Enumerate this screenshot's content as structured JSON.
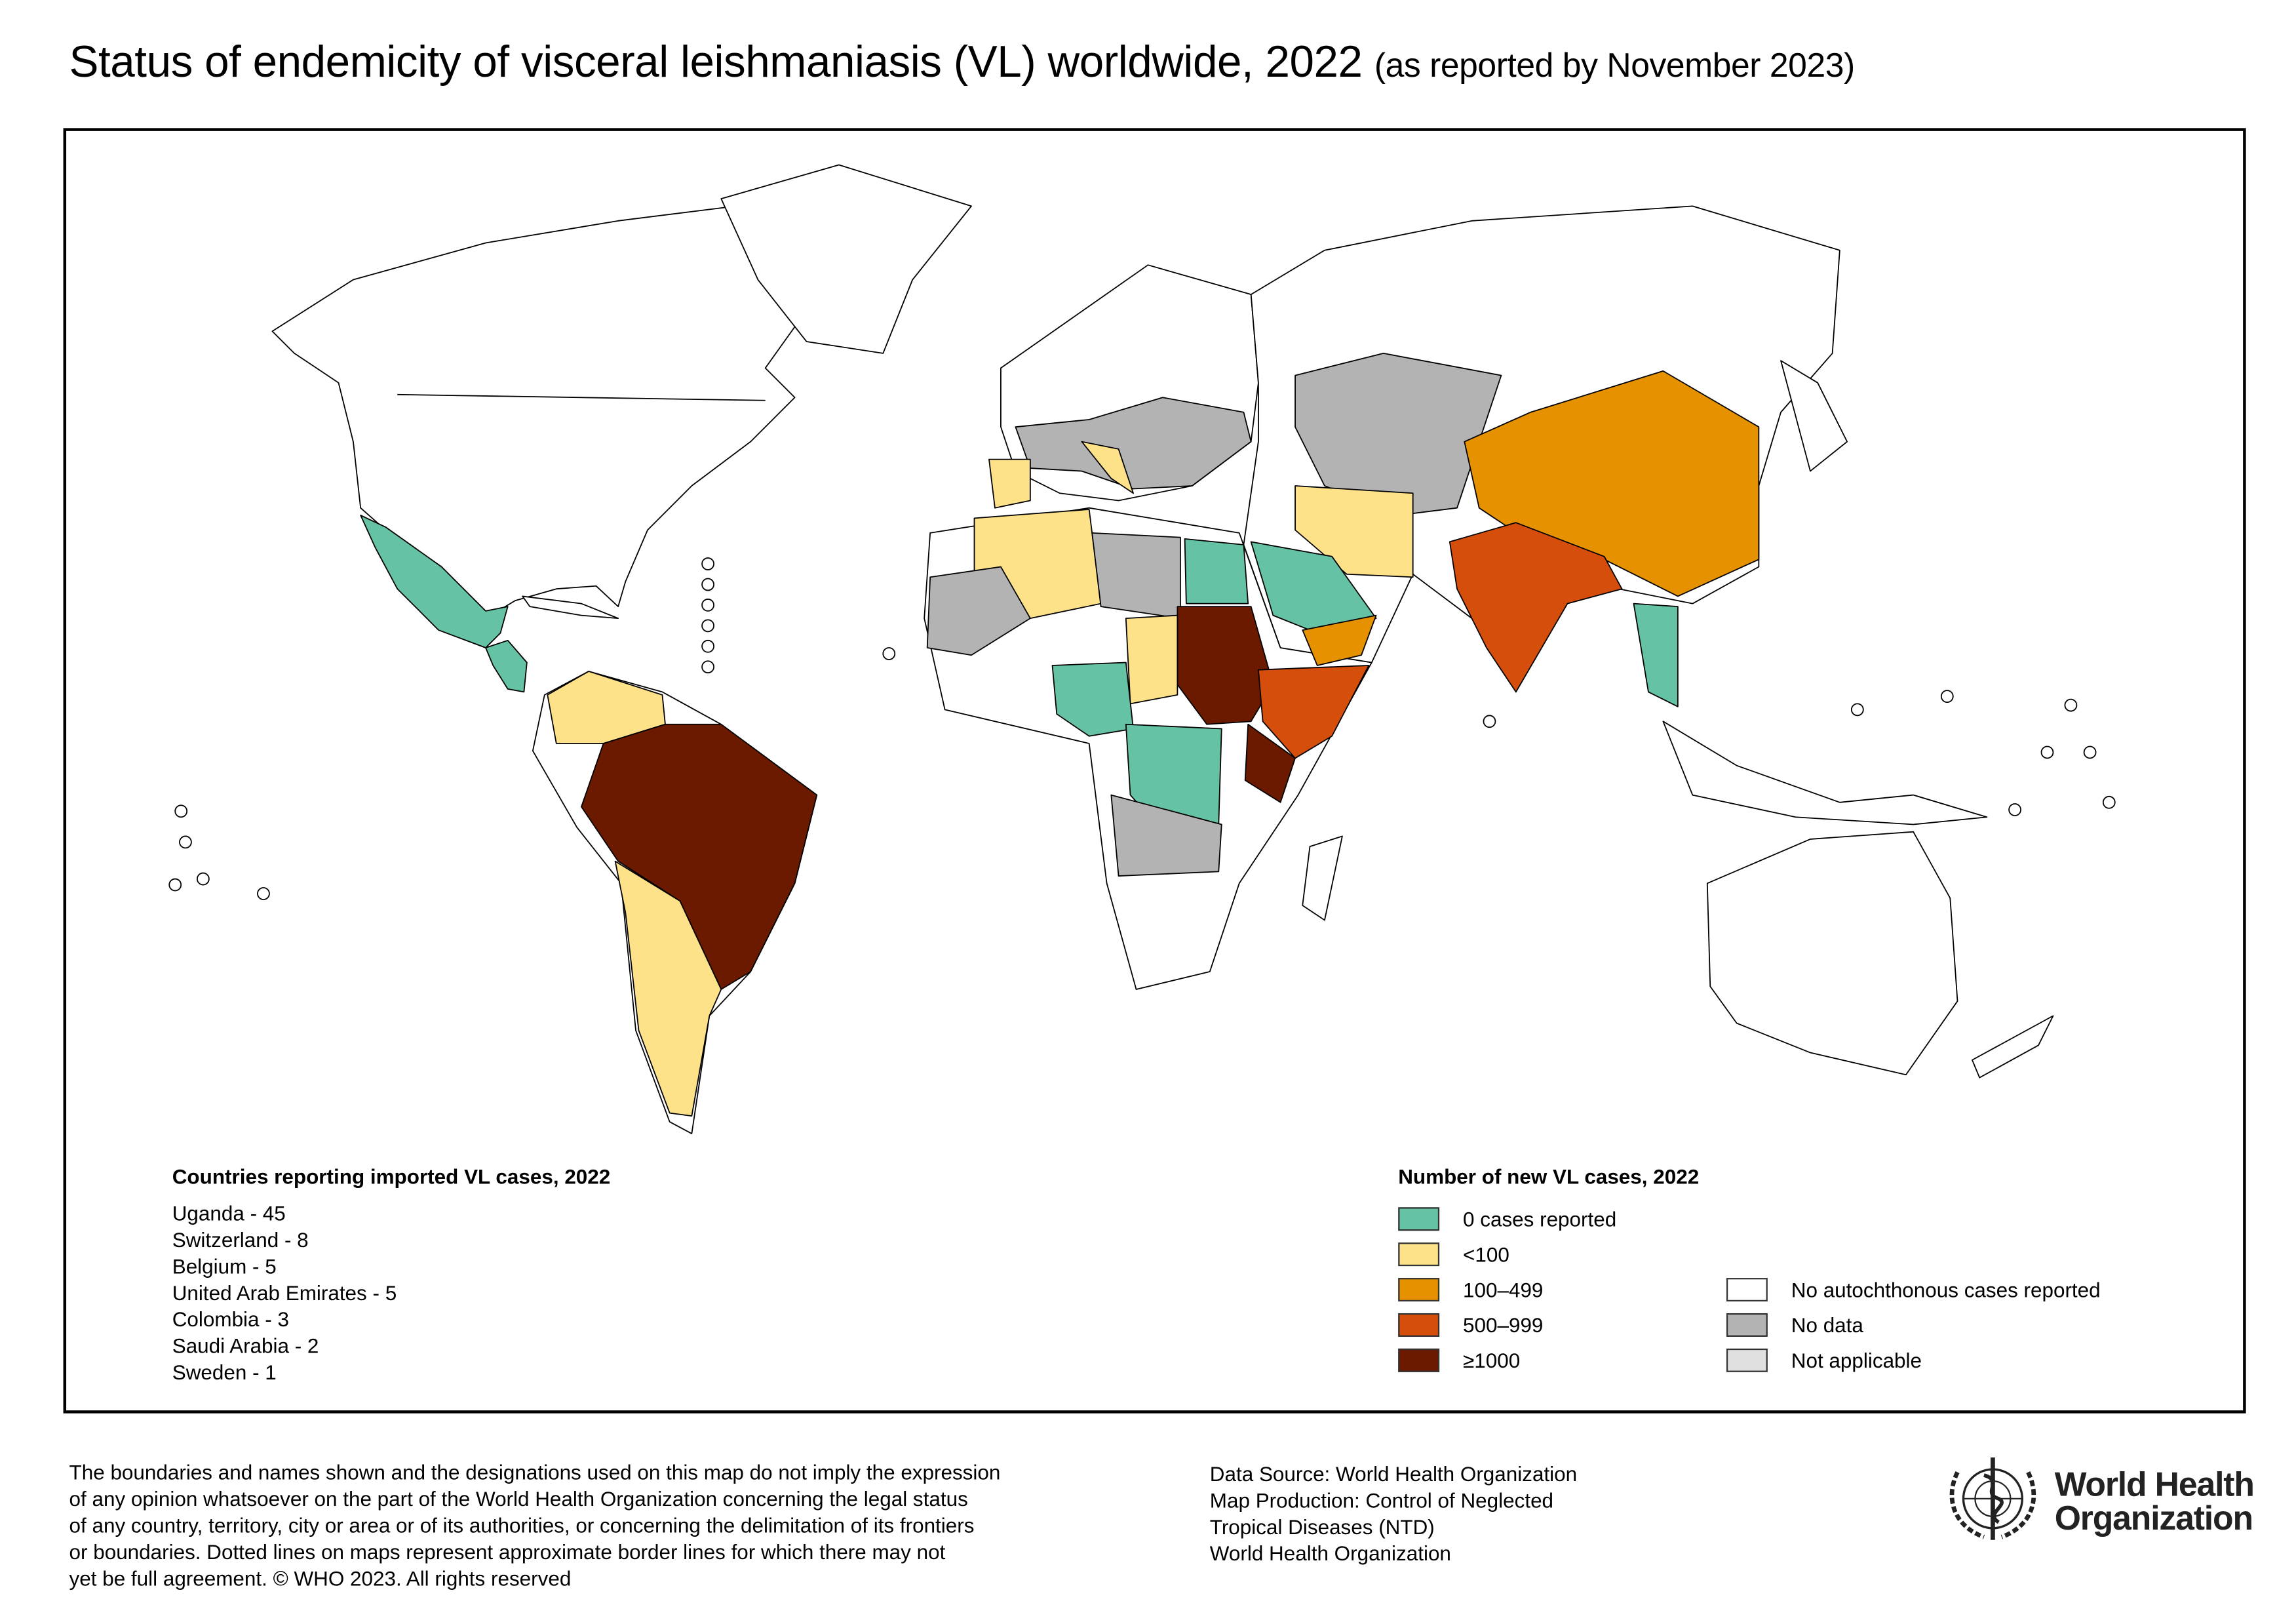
{
  "title": {
    "main": "Status of endemicity of visceral leishmaniasis (VL) worldwide, 2022 ",
    "sub": "(as reported by November 2023)"
  },
  "imported_legend": {
    "title": "Countries reporting imported VL cases, 2022",
    "items": [
      "Uganda - 45",
      "Switzerland - 8",
      "Belgium - 5",
      "United Arab Emirates - 5",
      "Colombia - 3",
      "Saudi Arabia - 2",
      "Sweden - 1"
    ]
  },
  "cases_legend": {
    "title": "Number of new VL cases, 2022",
    "items": [
      {
        "label": "0 cases reported",
        "color": "#66c2a5"
      },
      {
        "label": "<100",
        "color": "#fee28a"
      },
      {
        "label": "100–499",
        "color": "#e69100"
      },
      {
        "label": "500–999",
        "color": "#d64e0c"
      },
      {
        "label": "≥1000",
        "color": "#6b1a00"
      },
      {
        "label": "No autochthonous cases reported",
        "color": "#ffffff"
      },
      {
        "label": "No data",
        "color": "#b3b3b3"
      },
      {
        "label": "Not applicable",
        "color": "#e0e0e0"
      }
    ]
  },
  "disclaimer": [
    "The boundaries and names shown and the designations used on this map do not imply the expression",
    "of any opinion whatsoever on the part of the World Health Organization concerning the legal status",
    "of any country, territory, city or area or of its authorities, or concerning the delimitation of its frontiers",
    "or boundaries. Dotted lines on maps represent approximate border lines for which there may not",
    "yet be full agreement. © WHO 2023. All rights reserved"
  ],
  "credits": [
    "Data Source: World Health Organization",
    "Map Production: Control of Neglected",
    "Tropical Diseases (NTD)",
    "World Health Organization"
  ],
  "logo": {
    "line1": "World Health",
    "line2": "Organization"
  }
}
